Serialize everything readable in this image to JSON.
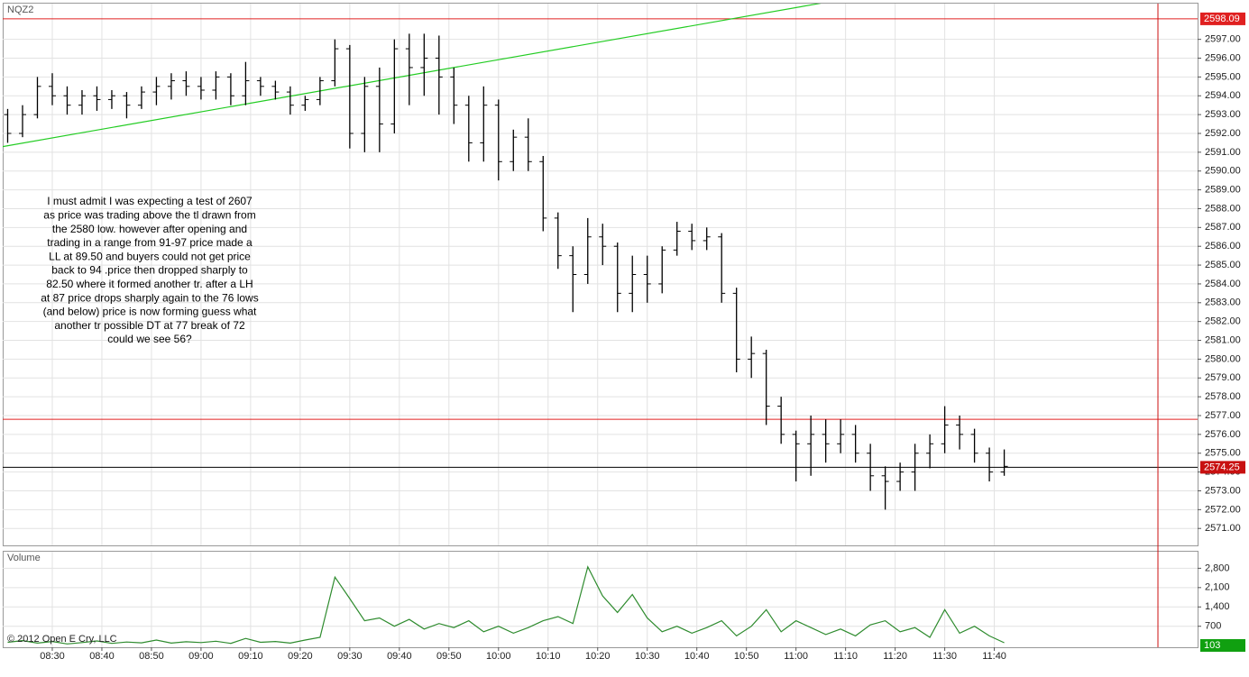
{
  "chart_data": [
    {
      "type": "ohlc",
      "title": "NQZ2",
      "color": "#000000",
      "grid": true,
      "x": [
        "08:21",
        "08:24",
        "08:27",
        "08:30",
        "08:33",
        "08:36",
        "08:39",
        "08:42",
        "08:45",
        "08:48",
        "08:51",
        "08:54",
        "08:57",
        "09:00",
        "09:03",
        "09:06",
        "09:09",
        "09:12",
        "09:15",
        "09:18",
        "09:21",
        "09:24",
        "09:27",
        "09:30",
        "09:33",
        "09:36",
        "09:39",
        "09:42",
        "09:45",
        "09:48",
        "09:51",
        "09:54",
        "09:57",
        "10:00",
        "10:03",
        "10:06",
        "10:09",
        "10:12",
        "10:15",
        "10:18",
        "10:21",
        "10:24",
        "10:27",
        "10:30",
        "10:33",
        "10:36",
        "10:39",
        "10:42",
        "10:45",
        "10:48",
        "10:51",
        "10:54",
        "10:57",
        "11:00",
        "11:03",
        "11:06",
        "11:09",
        "11:12",
        "11:15",
        "11:18",
        "11:21",
        "11:24",
        "11:27",
        "11:30",
        "11:33",
        "11:36",
        "11:39",
        "11:42"
      ],
      "open": [
        2593,
        2592,
        2593,
        2594.5,
        2594,
        2593.5,
        2594,
        2593.8,
        2594,
        2593.5,
        2594.2,
        2594.5,
        2594.8,
        2594.5,
        2594.3,
        2595,
        2594,
        2594.8,
        2594.5,
        2594.2,
        2593.5,
        2593.8,
        2594.8,
        2596.5,
        2592,
        2594.5,
        2592.5,
        2596.5,
        2595.5,
        2596,
        2595,
        2593.5,
        2591.5,
        2593.5,
        2590.5,
        2591.8,
        2590.5,
        2587.5,
        2585.5,
        2584.5,
        2586.5,
        2586,
        2583.5,
        2584.5,
        2584,
        2585.8,
        2586.8,
        2586.3,
        2586.5,
        2583.5,
        2580,
        2580.3,
        2577.5,
        2576,
        2575.5,
        2576,
        2575.5,
        2576,
        2575,
        2573.8,
        2573.5,
        2574,
        2575,
        2575.5,
        2576.5,
        2576,
        2575,
        2574
      ],
      "high": [
        2593.3,
        2593.5,
        2595,
        2595.2,
        2594.5,
        2594.3,
        2594.5,
        2594.3,
        2594.2,
        2594.5,
        2595,
        2595.2,
        2595.3,
        2595,
        2595.3,
        2595.2,
        2595.8,
        2595,
        2594.8,
        2594.5,
        2594,
        2595,
        2597,
        2596.7,
        2595,
        2595.5,
        2597,
        2597.3,
        2597.3,
        2597.2,
        2595.5,
        2594,
        2594.5,
        2593.8,
        2592.2,
        2592.8,
        2590.8,
        2587.8,
        2586,
        2587.5,
        2587.2,
        2586.2,
        2585.5,
        2585.5,
        2586,
        2587.3,
        2587.2,
        2587,
        2586.7,
        2583.8,
        2581.2,
        2580.5,
        2578,
        2576.2,
        2577,
        2576.8,
        2576.8,
        2576.5,
        2575.5,
        2574.3,
        2574.5,
        2575.5,
        2576,
        2577.5,
        2577,
        2576.3,
        2575.3,
        2575.2
      ],
      "low": [
        2591.5,
        2591.8,
        2592.8,
        2593.5,
        2593,
        2593,
        2593.2,
        2593.3,
        2592.8,
        2593.3,
        2593.5,
        2593.8,
        2594,
        2593.8,
        2593.8,
        2593.5,
        2593.5,
        2594,
        2593.8,
        2593,
        2593.2,
        2593.5,
        2594.5,
        2591.2,
        2591,
        2591,
        2592,
        2593.5,
        2594,
        2593,
        2592.5,
        2590.5,
        2590.5,
        2589.5,
        2590,
        2590,
        2586.8,
        2584.8,
        2582.5,
        2584,
        2585,
        2582.5,
        2582.5,
        2583,
        2583.5,
        2585.5,
        2585.8,
        2585.8,
        2583,
        2579.3,
        2579,
        2576.5,
        2575.5,
        2573.5,
        2573.8,
        2574.5,
        2575,
        2574.5,
        2573,
        2572,
        2573,
        2573,
        2574.2,
        2575,
        2575.2,
        2574.5,
        2573.5,
        2573.8
      ],
      "close": [
        2592,
        2593,
        2594.5,
        2594,
        2593.5,
        2594,
        2593.8,
        2594,
        2593.5,
        2594.2,
        2594.5,
        2594.8,
        2594.5,
        2594.3,
        2595,
        2594,
        2594.8,
        2594.5,
        2594.2,
        2593.5,
        2593.8,
        2594.8,
        2596.5,
        2592,
        2594.5,
        2592.5,
        2596.5,
        2595.5,
        2596,
        2595,
        2593.5,
        2591.5,
        2593.5,
        2590.5,
        2591.8,
        2590.5,
        2587.5,
        2585.5,
        2584.5,
        2586.5,
        2586,
        2583.5,
        2584.5,
        2584,
        2585.8,
        2586.8,
        2586.3,
        2586.5,
        2583.5,
        2580,
        2580.3,
        2577.5,
        2576,
        2575.5,
        2576,
        2575.5,
        2576,
        2575,
        2573.8,
        2573.5,
        2574,
        2575,
        2575.5,
        2576.5,
        2576,
        2575,
        2574,
        2574.3
      ],
      "xlim": [
        "08:20",
        "12:21"
      ],
      "ylim": [
        2570.1,
        2598.9
      ],
      "yticks": [
        {
          "value": 2571,
          "label": "2571.00"
        },
        {
          "value": 2572,
          "label": "2572.00"
        },
        {
          "value": 2573,
          "label": "2573.00"
        },
        {
          "value": 2574,
          "label": "2574.00"
        },
        {
          "value": 2575,
          "label": "2575.00"
        },
        {
          "value": 2576,
          "label": "2576.00"
        },
        {
          "value": 2577,
          "label": "2577.00"
        },
        {
          "value": 2578,
          "label": "2578.00"
        },
        {
          "value": 2579,
          "label": "2579.00"
        },
        {
          "value": 2580,
          "label": "2580.00"
        },
        {
          "value": 2581,
          "label": "2581.00"
        },
        {
          "value": 2582,
          "label": "2582.00"
        },
        {
          "value": 2583,
          "label": "2583.00"
        },
        {
          "value": 2584,
          "label": "2584.00"
        },
        {
          "value": 2585,
          "label": "2585.00"
        },
        {
          "value": 2586,
          "label": "2586.00"
        },
        {
          "value": 2587,
          "label": "2587.00"
        },
        {
          "value": 2588,
          "label": "2588.00"
        },
        {
          "value": 2589,
          "label": "2589.00"
        },
        {
          "value": 2590,
          "label": "2590.00"
        },
        {
          "value": 2591,
          "label": "2591.00"
        },
        {
          "value": 2592,
          "label": "2592.00"
        },
        {
          "value": 2593,
          "label": "2593.00"
        },
        {
          "value": 2594,
          "label": "2594.00"
        },
        {
          "value": 2595,
          "label": "2595.00"
        },
        {
          "value": 2596,
          "label": "2596.00"
        },
        {
          "value": 2597,
          "label": "2597.00"
        }
      ],
      "levels": [
        {
          "value": 2598.09,
          "color": "#e02020",
          "labeled": true
        },
        {
          "value": 2576.8,
          "color": "#e02020"
        },
        {
          "value": 2574.25,
          "color": "#000000",
          "labeled": true,
          "label_color": "#c81010"
        }
      ],
      "trendline": {
        "x": [
          "08:20",
          "11:05"
        ],
        "y": [
          2591.3,
          2598.92
        ],
        "color": "#22cc22"
      },
      "vline": {
        "x": "12:13",
        "color": "#cc1010"
      },
      "annotation": [
        "I must admit I was expecting a test of 2607",
        "as price was trading above the tl drawn from",
        "the 2580 low. however after opening and",
        "trading in a range from 91-97 price made a",
        "LL at 89.50  and buyers could not get price",
        "back  to 94 .price then dropped sharply to",
        "82.50 where it formed another tr. after a LH",
        "at 87 price drops sharply again to the 76 lows",
        "(and below) price is now forming guess what",
        "another tr  possible DT at 77 break of 72",
        "could we see 56?"
      ]
    },
    {
      "type": "line",
      "title": "Volume",
      "source": "© 2012 Open E Cry, LLC",
      "color": "#2e8b2e",
      "grid": true,
      "x": [
        "08:21",
        "08:24",
        "08:27",
        "08:30",
        "08:33",
        "08:36",
        "08:39",
        "08:42",
        "08:45",
        "08:48",
        "08:51",
        "08:54",
        "08:57",
        "09:00",
        "09:03",
        "09:06",
        "09:09",
        "09:12",
        "09:15",
        "09:18",
        "09:21",
        "09:24",
        "09:27",
        "09:30",
        "09:33",
        "09:36",
        "09:39",
        "09:42",
        "09:45",
        "09:48",
        "09:51",
        "09:54",
        "09:57",
        "10:00",
        "10:03",
        "10:06",
        "10:09",
        "10:12",
        "10:15",
        "10:18",
        "10:21",
        "10:24",
        "10:27",
        "10:30",
        "10:33",
        "10:36",
        "10:39",
        "10:42",
        "10:45",
        "10:48",
        "10:51",
        "10:54",
        "10:57",
        "11:00",
        "11:03",
        "11:06",
        "11:09",
        "11:12",
        "11:15",
        "11:18",
        "11:21",
        "11:24",
        "11:27",
        "11:30",
        "11:33",
        "11:36",
        "11:39",
        "11:42"
      ],
      "values": [
        120,
        180,
        90,
        150,
        60,
        110,
        170,
        80,
        130,
        100,
        200,
        90,
        140,
        110,
        160,
        80,
        260,
        120,
        150,
        90,
        200,
        300,
        2480,
        1700,
        900,
        1000,
        700,
        950,
        600,
        800,
        650,
        900,
        500,
        700,
        450,
        650,
        900,
        1050,
        800,
        2850,
        1800,
        1200,
        1850,
        1000,
        500,
        700,
        450,
        650,
        900,
        350,
        700,
        1300,
        500,
        900,
        650,
        400,
        600,
        350,
        750,
        900,
        500,
        650,
        300,
        1300,
        450,
        700,
        350,
        103
      ],
      "last_label_color": "#10a010",
      "xlim": [
        "08:20",
        "12:21"
      ],
      "ylim": [
        -60,
        3400
      ],
      "xticks": [
        "08:30",
        "08:40",
        "08:50",
        "09:00",
        "09:10",
        "09:20",
        "09:30",
        "09:40",
        "09:50",
        "10:00",
        "10:10",
        "10:20",
        "10:30",
        "10:40",
        "10:50",
        "11:00",
        "11:10",
        "11:20",
        "11:30",
        "11:40"
      ],
      "yticks": [
        700,
        {
          "value": 1400,
          "label": "1,400"
        },
        {
          "value": 2100,
          "label": "2,100"
        },
        {
          "value": 2800,
          "label": "2,800"
        }
      ]
    }
  ]
}
